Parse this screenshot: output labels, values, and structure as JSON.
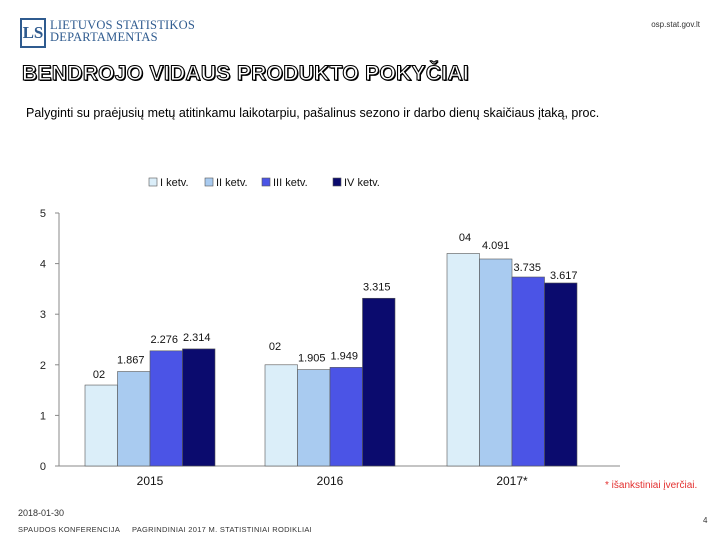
{
  "header": {
    "logo_lines": [
      "LIETUVOS STATISTIKOS",
      "DEPARTAMENTAS"
    ],
    "site": "osp.stat.gov.lt"
  },
  "footer": {
    "date": "2018-01-30",
    "conference": "SPAUDOS KONFERENCIJA",
    "presentation": "PAGRINDINIAI 2017 M. STATISTINIAI RODIKLIAI",
    "page": "4",
    "footnote": "* išankstiniai įverčiai."
  },
  "colors": {
    "q1": "#dbeef9",
    "q2": "#a9cbf0",
    "q3": "#4b54e6",
    "q4": "#0b0b6e",
    "footnote": "#e3302f"
  },
  "chart_data": {
    "type": "bar",
    "title": "BENDROJO VIDAUS PRODUKTO POKYČIAI",
    "subtitle": "Palyginti su praėjusių metų atitinkamu laikotarpiu, pašalinus sezono ir darbo dienų skaičiaus įtaką,  proc.",
    "categories": [
      "2015",
      "2016",
      "2017*"
    ],
    "series": [
      {
        "name": "I ketv.",
        "values": [
          1.6,
          2.0,
          4.2
        ],
        "labels": [
          "",
          "",
          ""
        ]
      },
      {
        "name": "II ketv.",
        "values": [
          1.867,
          1.905,
          4.091
        ],
        "labels": [
          "1.867",
          "1.905",
          "4.091"
        ]
      },
      {
        "name": "III ketv.",
        "values": [
          2.276,
          1.949,
          3.735
        ],
        "labels": [
          "2.276",
          "1.949",
          "3.735"
        ]
      },
      {
        "name": "IV ketv.",
        "values": [
          2.314,
          3.315,
          3.617
        ],
        "labels": [
          "2.314",
          "3.315",
          "3.617"
        ]
      }
    ],
    "stray_labels": [
      "02",
      "02",
      "04"
    ],
    "ylim": [
      0,
      5
    ],
    "yticks": [
      "0",
      "1",
      "2",
      "3",
      "4",
      "5"
    ],
    "legend_position": "top",
    "grid": false
  }
}
